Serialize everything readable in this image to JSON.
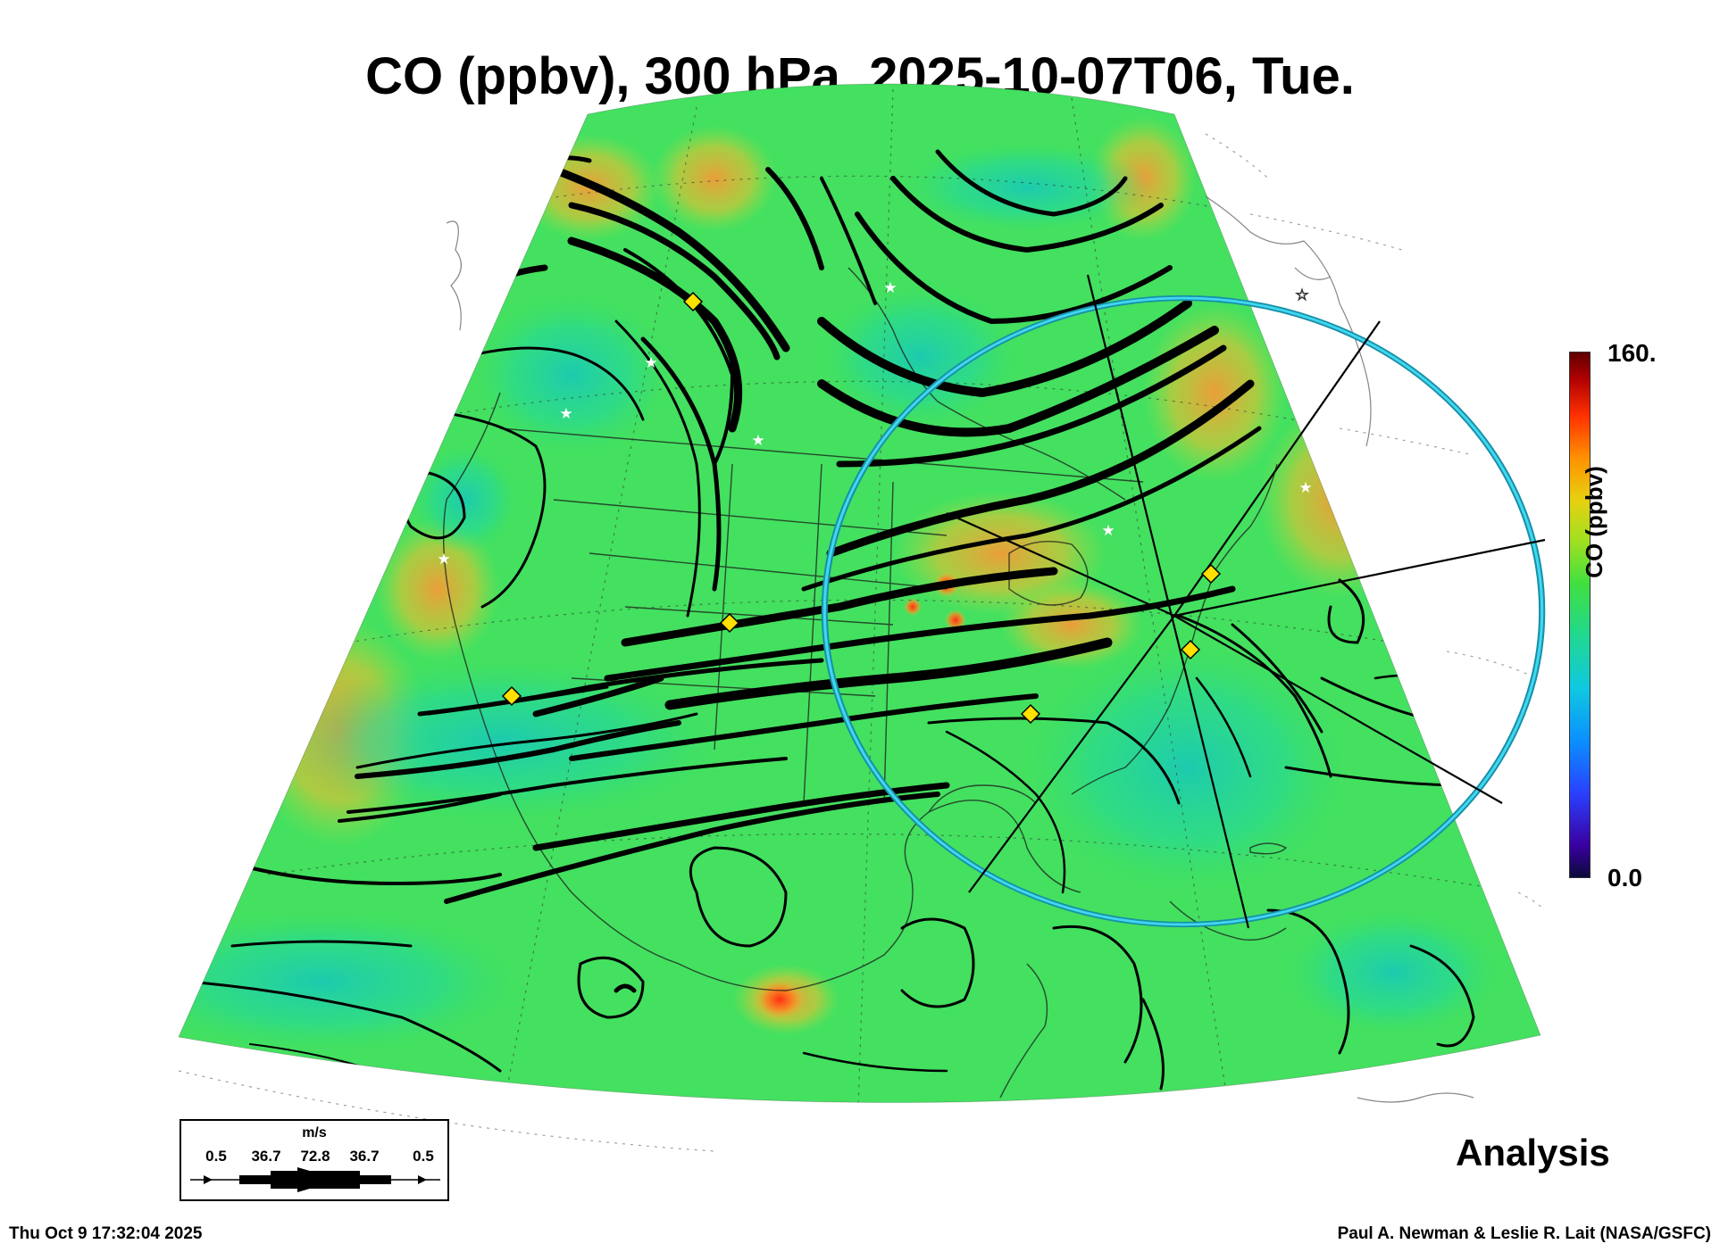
{
  "title": "CO (ppbv), 300 hPa, 2025-10-07T06, Tue.",
  "colorbar": {
    "label": "CO (ppbv)",
    "max_label": "160.",
    "min_label": "0.0",
    "range": [
      0,
      160
    ],
    "colors": [
      "#0a0a3a",
      "#3a00a0",
      "#2a40ff",
      "#0a90ff",
      "#10c8e0",
      "#20d890",
      "#40e040",
      "#a0e020",
      "#e8d010",
      "#ff9000",
      "#ff3000",
      "#b00000",
      "#600000"
    ]
  },
  "wind_legend": {
    "unit": "m/s",
    "ticks": [
      "0.5",
      "36.7",
      "72.8",
      "36.7",
      "0.5"
    ]
  },
  "analysis_label": "Analysis",
  "footer": {
    "date": "Thu Oct  9 17:32:04 2025",
    "credit": "Paul A. Newman & Leslie R. Lait (NASA/GSFC)"
  },
  "map": {
    "projection": "conic sector over North America",
    "field": "CO concentration at 300 hPa with wind streamlines",
    "background_color": "#44e060",
    "high_co_color": "#f0a030",
    "low_co_color": "#20d0a0",
    "streamline_color": "#000000",
    "range_ring_color": "#20b8d8",
    "marker_color": "#ffe000",
    "star_color": "#ffffff"
  }
}
